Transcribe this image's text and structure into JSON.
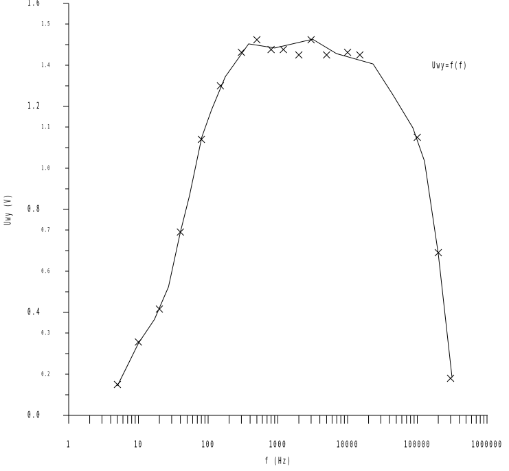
{
  "chart_data": {
    "type": "scatter",
    "annotation": "Uwy=f(f)",
    "x_label": "f (Hz)",
    "y_label": "Uwy (V)",
    "log_x": true,
    "xlim": [
      1,
      1000000
    ],
    "xticks": [
      1,
      10,
      100,
      1000,
      10000,
      100000,
      1000000
    ],
    "ylim": [
      0,
      1.6
    ],
    "yticks": [
      {
        "value": 0,
        "label": "0.0"
      },
      0.4,
      0.8,
      1.2,
      1.6
    ],
    "yticks_minor": [
      {
        "value": 0.16,
        "label": "0.2"
      },
      {
        "value": 0.32,
        "label": "0.3"
      },
      {
        "value": 0.56,
        "label": "0.6"
      },
      {
        "value": 0.72,
        "label": "0.7"
      },
      {
        "value": 0.96,
        "label": "1.0"
      },
      {
        "value": 1.12,
        "label": "1.1"
      },
      {
        "value": 1.36,
        "label": "1.4"
      },
      {
        "value": 1.52,
        "label": "1.5"
      }
    ],
    "yticks_unlabeled": [
      0.08,
      0.24,
      0.48,
      0.64,
      0.88,
      1.04,
      1.28,
      1.44
    ],
    "color": "#000000",
    "points": {
      "x": [
        5,
        10,
        20,
        40,
        80,
        150,
        300,
        500,
        800,
        1200,
        2000,
        3000,
        5000,
        10000,
        15000,
        100000,
        200000,
        300000
      ],
      "values": [
        0.12,
        0.285,
        0.413,
        0.712,
        1.072,
        1.28,
        1.41,
        1.459,
        1.421,
        1.421,
        1.4,
        1.459,
        1.4,
        1.41,
        1.4,
        1.08,
        0.632,
        0.144
      ]
    },
    "curve": {
      "x": [
        5,
        7.4,
        10,
        17,
        27,
        40,
        54,
        81,
        112,
        176,
        381,
        903,
        3150,
        6950,
        23200,
        44700,
        86300,
        127000,
        200000,
        315000
      ],
      "values": [
        0.115,
        0.208,
        0.28,
        0.373,
        0.499,
        0.712,
        0.853,
        1.08,
        1.187,
        1.315,
        1.443,
        1.427,
        1.461,
        1.405,
        1.365,
        1.245,
        1.117,
        0.987,
        0.627,
        0.147
      ]
    }
  }
}
